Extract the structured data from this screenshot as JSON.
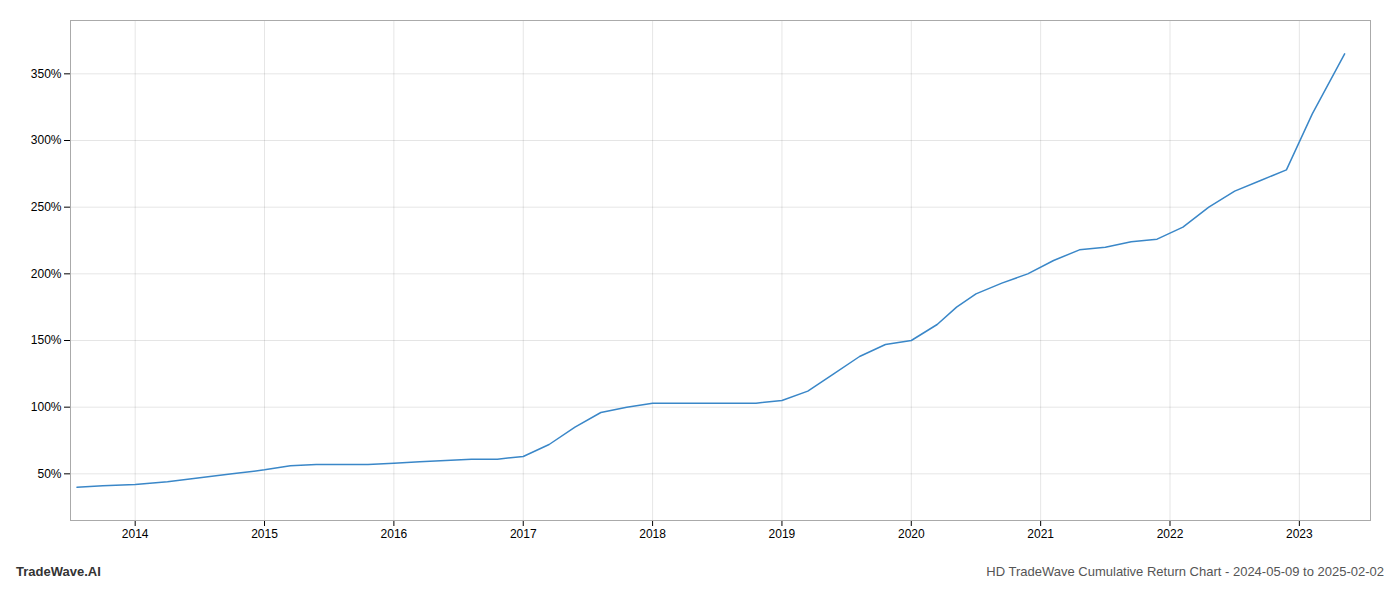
{
  "chart_data": {
    "type": "line",
    "title": "HD TradeWave Cumulative Return Chart - 2024-05-09 to 2025-02-02",
    "annotations": [
      "TradeWave.AI"
    ],
    "x": [
      2013.55,
      2013.75,
      2014.0,
      2014.25,
      2014.5,
      2014.75,
      2015.0,
      2015.2,
      2015.4,
      2015.6,
      2015.8,
      2016.0,
      2016.2,
      2016.4,
      2016.6,
      2016.8,
      2017.0,
      2017.2,
      2017.4,
      2017.6,
      2017.8,
      2018.0,
      2018.2,
      2018.4,
      2018.6,
      2018.8,
      2019.0,
      2019.2,
      2019.4,
      2019.6,
      2019.8,
      2020.0,
      2020.2,
      2020.35,
      2020.5,
      2020.7,
      2020.9,
      2021.1,
      2021.3,
      2021.5,
      2021.7,
      2021.9,
      2022.1,
      2022.3,
      2022.5,
      2022.7,
      2022.9,
      2023.1,
      2023.35
    ],
    "values": [
      40,
      41,
      42,
      44,
      47,
      50,
      53,
      56,
      57,
      57,
      57,
      58,
      59,
      60,
      61,
      61,
      63,
      72,
      85,
      96,
      100,
      103,
      103,
      103,
      103,
      103,
      105,
      112,
      125,
      138,
      147,
      150,
      162,
      175,
      185,
      193,
      200,
      210,
      218,
      220,
      224,
      226,
      235,
      250,
      262,
      270,
      278,
      320,
      365
    ],
    "color": "#3a87c8",
    "xlim": [
      2013.5,
      2023.55
    ],
    "xticks": [
      2014,
      2015,
      2016,
      2017,
      2018,
      2019,
      2020,
      2021,
      2022,
      2023
    ],
    "ylim": [
      15,
      390
    ],
    "yticks": [
      {
        "value": 50,
        "label": "50%"
      },
      {
        "value": 100,
        "label": "100%"
      },
      {
        "value": 150,
        "label": "150%"
      },
      {
        "value": 200,
        "label": "200%"
      },
      {
        "value": 250,
        "label": "250%"
      },
      {
        "value": 300,
        "label": "300%"
      },
      {
        "value": 350,
        "label": "350%"
      }
    ],
    "grid": true
  }
}
